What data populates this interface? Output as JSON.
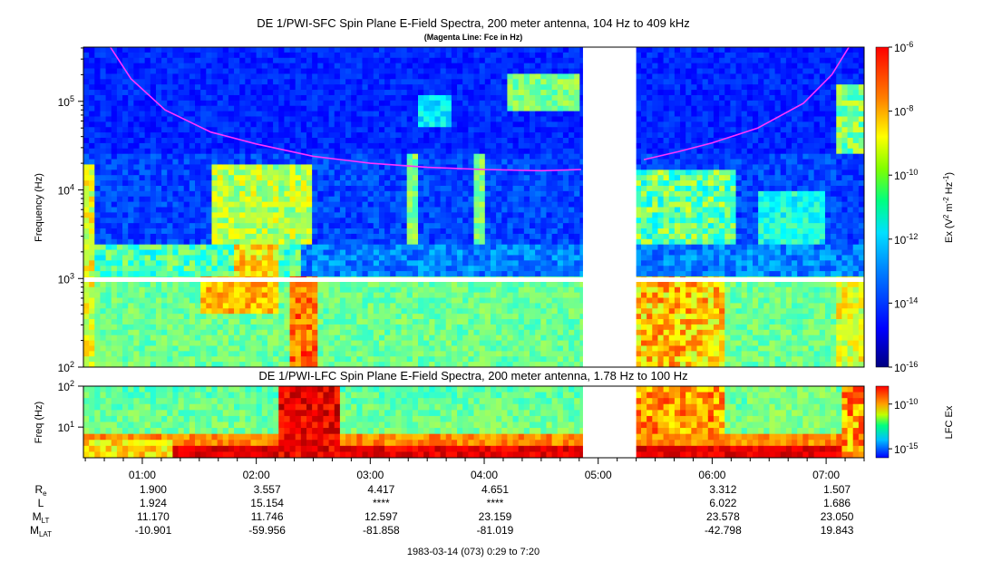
{
  "top_title": "DE 1/PWI-SFC  Spin Plane E-Field Spectra, 200 meter antenna, 104 Hz to 409 kHz",
  "top_subtitle": "(Magenta Line: Fce in Hz)",
  "bottom_title": "DE 1/PWI-LFC  Spin Plane E-Field Spectra, 200 meter antenna, 1.78 Hz to 100 Hz",
  "date_label": "1983-03-14 (073) 0:29 to 7:20",
  "colors": {
    "fce_line": "#ff33ff",
    "data_gap": "#ffffff"
  },
  "chart_data": [
    {
      "type": "heatmap",
      "name": "SFC",
      "ylabel": "Frequency (Hz)",
      "yscale": "log",
      "ylim": [
        100,
        409000
      ],
      "y_ticks": [
        {
          "value": 100,
          "base": "10",
          "exp": "2"
        },
        {
          "value": 1000,
          "base": "10",
          "exp": "3"
        },
        {
          "value": 10000,
          "base": "10",
          "exp": "4"
        },
        {
          "value": 100000,
          "base": "10",
          "exp": "5"
        }
      ],
      "colorbar": {
        "label_prefix": "Ex (V",
        "label_exp1": "2",
        "label_mid": " m",
        "label_exp2": "-2",
        "label_mid2": " Hz",
        "label_exp3": "-1",
        "label_suffix": ")",
        "scale": "log",
        "range": [
          1e-16,
          1e-06
        ],
        "ticks": [
          {
            "value": 1e-06,
            "base": "10",
            "exp": "-6"
          },
          {
            "value": 1e-08,
            "base": "10",
            "exp": "-8"
          },
          {
            "value": 1e-10,
            "base": "10",
            "exp": "-10"
          },
          {
            "value": 1e-12,
            "base": "10",
            "exp": "-12"
          },
          {
            "value": 1e-14,
            "base": "10",
            "exp": "-14"
          },
          {
            "value": 1e-16,
            "base": "10",
            "exp": "-16"
          }
        ]
      },
      "fce_line": [
        [
          0.72,
          409000
        ],
        [
          0.9,
          180000
        ],
        [
          1.2,
          80000
        ],
        [
          1.6,
          45000
        ],
        [
          2.0,
          33000
        ],
        [
          2.5,
          24000
        ],
        [
          3.0,
          20000
        ],
        [
          3.5,
          18000
        ],
        [
          4.0,
          17000
        ],
        [
          4.5,
          16500
        ],
        [
          4.85,
          17000
        ],
        [
          5.4,
          22000
        ],
        [
          5.7,
          27000
        ],
        [
          6.0,
          34000
        ],
        [
          6.4,
          50000
        ],
        [
          6.8,
          95000
        ],
        [
          7.05,
          200000
        ],
        [
          7.2,
          409000
        ]
      ]
    },
    {
      "type": "heatmap",
      "name": "LFC",
      "ylabel": "Freq (Hz)",
      "yscale": "log",
      "ylim": [
        1.78,
        100
      ],
      "y_ticks": [
        {
          "value": 10,
          "base": "10",
          "exp": "1"
        },
        {
          "value": 100,
          "base": "10",
          "exp": "2"
        }
      ],
      "colorbar": {
        "label": "LFC Ex",
        "scale": "log",
        "range": [
          1e-16,
          1e-08
        ],
        "ticks": [
          {
            "value": 1e-10,
            "base": "10",
            "exp": "-10"
          },
          {
            "value": 1e-15,
            "base": "10",
            "exp": "-15"
          }
        ]
      }
    }
  ],
  "time_axis": {
    "xlim": [
      "0:29",
      "7:20"
    ],
    "ticks": [
      "01:00",
      "02:00",
      "03:00",
      "04:00",
      "05:00",
      "06:00",
      "07:00"
    ],
    "data_gap": [
      "4:52",
      "5:20"
    ]
  },
  "ephemeris": {
    "rows": [
      {
        "label": "R",
        "sub": "e",
        "values": [
          "1.900",
          "3.557",
          "4.417",
          "4.651",
          "",
          "3.312",
          "1.507"
        ]
      },
      {
        "label": "L",
        "sub": "",
        "values": [
          "1.924",
          "15.154",
          "****",
          "****",
          "",
          "6.022",
          "1.686"
        ]
      },
      {
        "label": "M",
        "sub": "LT",
        "values": [
          "11.170",
          "11.746",
          "12.597",
          "23.159",
          "",
          "23.578",
          "23.050"
        ]
      },
      {
        "label": "M",
        "sub": "LAT",
        "values": [
          "-10.901",
          "-59.956",
          "-81.858",
          "-81.019",
          "",
          "-42.798",
          "19.843"
        ]
      }
    ]
  }
}
